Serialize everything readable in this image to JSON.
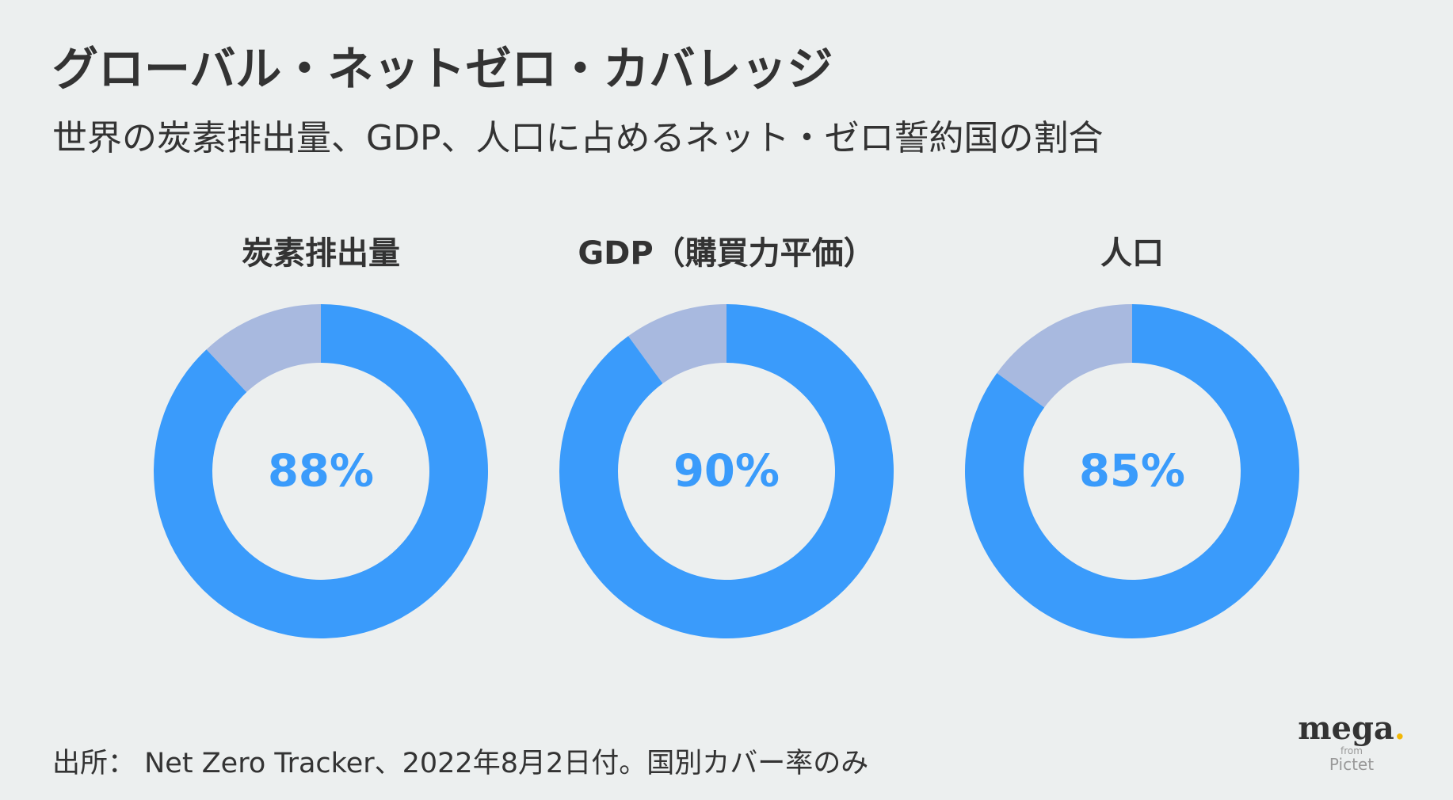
{
  "title": "グローバル・ネットゼロ・カバレッジ",
  "subtitle": "世界の炭素排出量、GDP、人口に占めるネット・ゼロ誓約国の割合",
  "colors": {
    "covered": "#3a9bfb",
    "uncovered": "#a8b9df",
    "background": "#ecefef",
    "text": "#333333"
  },
  "chart_data": [
    {
      "type": "pie",
      "variant": "donut",
      "title": "炭素排出量",
      "value_label": "88%",
      "slices": [
        {
          "label": "covered",
          "value": 88
        },
        {
          "label": "uncovered",
          "value": 12
        }
      ]
    },
    {
      "type": "pie",
      "variant": "donut",
      "title": "GDP（購買力平価）",
      "value_label": "90%",
      "slices": [
        {
          "label": "covered",
          "value": 90
        },
        {
          "label": "uncovered",
          "value": 10
        }
      ]
    },
    {
      "type": "pie",
      "variant": "donut",
      "title": "人口",
      "value_label": "85%",
      "slices": [
        {
          "label": "covered",
          "value": 85
        },
        {
          "label": "uncovered",
          "value": 15
        }
      ]
    }
  ],
  "source": "出所： Net Zero Tracker、2022年8月2日付。国別カバー率のみ",
  "logo": {
    "main": "mega",
    "dot": ".",
    "from": "from",
    "brand": "Pictet"
  }
}
